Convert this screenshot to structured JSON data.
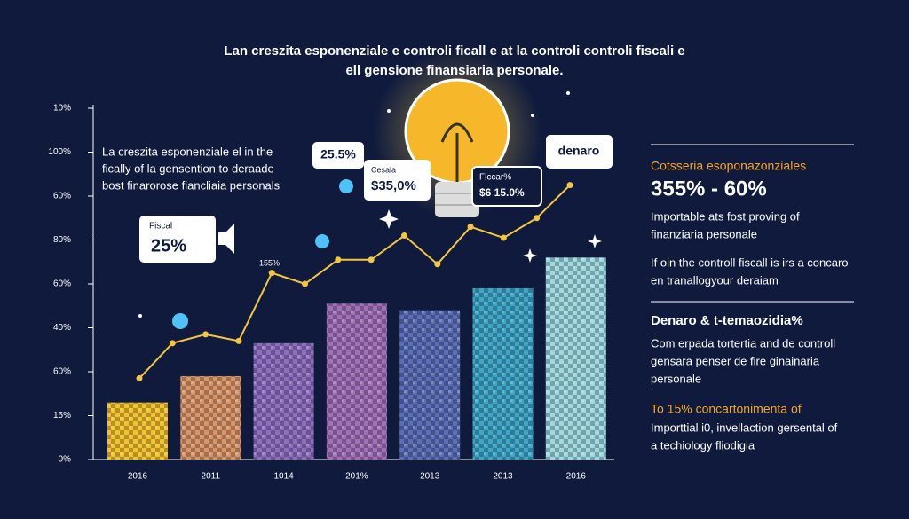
{
  "chart_data": {
    "type": "bar",
    "title": [
      "Lan creszita esponenziale e controli ficall e at la controli controli fiscali e",
      "ell gensione finansiaria personale."
    ],
    "categories": [
      "2016",
      "2011",
      "1014",
      "201%",
      "2013",
      "2013",
      "2016"
    ],
    "values": [
      1.3,
      1.9,
      2.65,
      3.55,
      3.4,
      3.9,
      4.6
    ],
    "colors": [
      "#f2c230",
      "#d9956a",
      "#8d6fc0",
      "#a070b8",
      "#5a6fb8",
      "#3fa6c8",
      "#9fd8e0"
    ],
    "ylim": [
      0,
      8
    ],
    "yticks": [
      {
        "value": 0,
        "label": "0%"
      },
      {
        "value": 1,
        "label": "15%"
      },
      {
        "value": 2,
        "label": "60%"
      },
      {
        "value": 3,
        "label": "40%"
      },
      {
        "value": 4,
        "label": "60%"
      },
      {
        "value": 5,
        "label": "80%"
      },
      {
        "value": 6,
        "label": "60%"
      },
      {
        "value": 7,
        "label": "100%"
      },
      {
        "value": 8,
        "label": "10%"
      }
    ],
    "line": {
      "color": "#f5c542",
      "values": [
        1.85,
        2.65,
        2.85,
        2.7,
        4.25,
        4.0,
        4.55,
        4.55,
        5.1,
        4.45,
        5.3,
        5.05,
        5.5,
        6.25
      ]
    },
    "description": [
      "La creszita esponenziale el in the",
      "fically of la gensention to deraade",
      "bost finarorose fiancliaia personals"
    ],
    "annotations": [
      "25.5%",
      "Cesala",
      "$35,0%",
      "Fiscal",
      "25%",
      "Ficcar%",
      "$6 15.0%",
      "denaro",
      "155%"
    ]
  },
  "side_panel": {
    "heading": "Cotsseria esoponazonziales",
    "highlight": "355% - 60%",
    "paragraph_1": [
      "Importable ats fost proving of",
      "finanziaria personale"
    ],
    "paragraph_2": [
      "If oin the controll fiscall is irs a concaro",
      "en tranallogyour deraiam"
    ],
    "subheading": "Denaro & t-temaozidia%",
    "paragraph_3": [
      "Com erpada tortertia and de controll",
      "gensara penser de fire ginainaria",
      "personale"
    ],
    "callout": "To 15% concartonimenta of",
    "paragraph_4": [
      "Importtial i0, invellaction gersental of",
      "a techiology fliodigia"
    ]
  }
}
